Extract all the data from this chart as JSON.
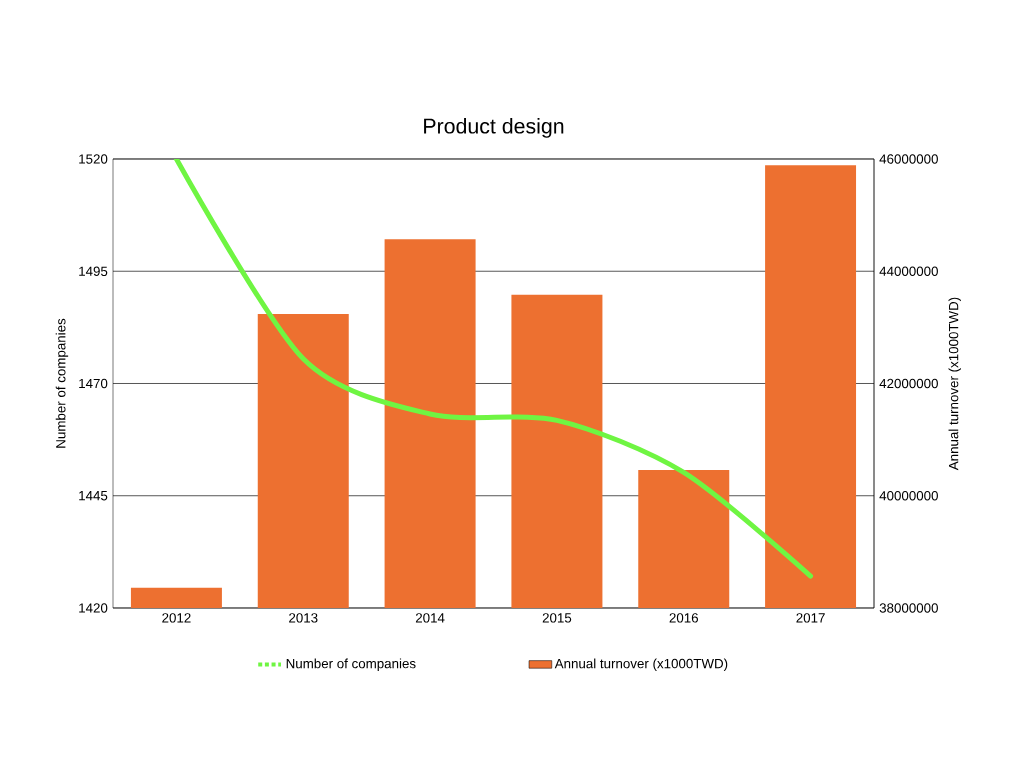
{
  "chart_data": {
    "type": "bar",
    "title": "Product design",
    "categories": [
      "2012",
      "2013",
      "2014",
      "2015",
      "2016",
      "2017"
    ],
    "ylabel": "Number of companies",
    "y2label": "Annual turnover (x1000TWD)",
    "ylim": [
      1420,
      1520
    ],
    "yticks": [
      1420,
      1445,
      1470,
      1495,
      1520
    ],
    "y2lim": [
      38000000,
      46000000
    ],
    "y2ticks": [
      38000000,
      40000000,
      42000000,
      44000000,
      46000000
    ],
    "grid": "y",
    "legend": "bottom",
    "series": [
      {
        "name": "Number of companies",
        "type": "line",
        "color": "#6ff542",
        "values": [
          1520,
          1475.5,
          1463.2,
          1461.8,
          1450.2,
          1427.1
        ]
      },
      {
        "name": "Annual turnover (x1000TWD)",
        "axis": "y2",
        "color": "#ed7030",
        "values": [
          38360000,
          43240000,
          44570000,
          43580000,
          40460000,
          45890000
        ]
      }
    ]
  }
}
